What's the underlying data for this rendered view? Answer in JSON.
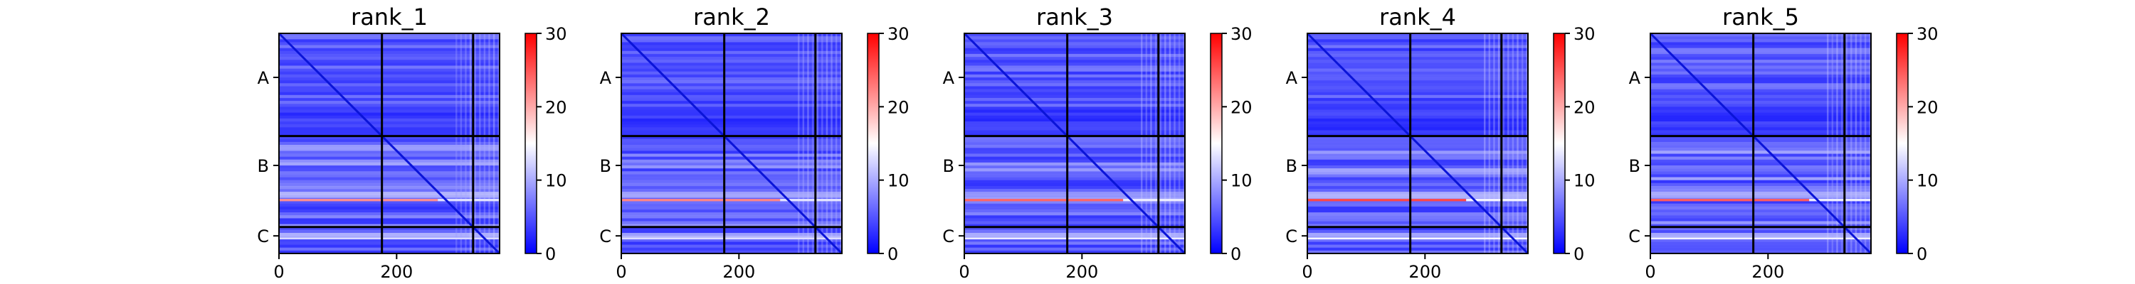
{
  "figure": {
    "colorscale": {
      "min": 0,
      "max": 30,
      "low_color": "#0000ff",
      "mid_color": "#ffffff",
      "high_color": "#ff0000",
      "ticks": [
        "0",
        "10",
        "20",
        "30"
      ]
    },
    "chain_labels": [
      "A",
      "B",
      "C"
    ],
    "x_ticks": [
      "0",
      "200"
    ]
  },
  "chart_data": [
    {
      "type": "heatmap",
      "title": "rank_1",
      "xlabel": "",
      "ylabel": "",
      "x_range": [
        0,
        375
      ],
      "y_range": [
        0,
        375
      ],
      "clim": [
        0,
        30
      ],
      "chain_breaks": [
        175,
        330
      ],
      "y_tick_labels": [
        "A",
        "B",
        "C"
      ],
      "x_tick_labels": [
        "0",
        "200"
      ],
      "colorbar_ticks": [
        0,
        10,
        20,
        30
      ],
      "hot_row_intensity": 0.8
    },
    {
      "type": "heatmap",
      "title": "rank_2",
      "xlabel": "",
      "ylabel": "",
      "x_range": [
        0,
        375
      ],
      "y_range": [
        0,
        375
      ],
      "clim": [
        0,
        30
      ],
      "chain_breaks": [
        175,
        330
      ],
      "y_tick_labels": [
        "A",
        "B",
        "C"
      ],
      "x_tick_labels": [
        "0",
        "200"
      ],
      "colorbar_ticks": [
        0,
        10,
        20,
        30
      ],
      "hot_row_intensity": 0.85
    },
    {
      "type": "heatmap",
      "title": "rank_3",
      "xlabel": "",
      "ylabel": "",
      "x_range": [
        0,
        375
      ],
      "y_range": [
        0,
        375
      ],
      "clim": [
        0,
        30
      ],
      "chain_breaks": [
        175,
        330
      ],
      "y_tick_labels": [
        "A",
        "B",
        "C"
      ],
      "x_tick_labels": [
        "0",
        "200"
      ],
      "colorbar_ticks": [
        0,
        10,
        20,
        30
      ],
      "hot_row_intensity": 1.0
    },
    {
      "type": "heatmap",
      "title": "rank_4",
      "xlabel": "",
      "ylabel": "",
      "x_range": [
        0,
        375
      ],
      "y_range": [
        0,
        375
      ],
      "clim": [
        0,
        30
      ],
      "chain_breaks": [
        175,
        330
      ],
      "y_tick_labels": [
        "A",
        "B",
        "C"
      ],
      "x_tick_labels": [
        "0",
        "200"
      ],
      "colorbar_ticks": [
        0,
        10,
        20,
        30
      ],
      "hot_row_intensity": 1.15
    },
    {
      "type": "heatmap",
      "title": "rank_5",
      "xlabel": "",
      "ylabel": "",
      "x_range": [
        0,
        375
      ],
      "y_range": [
        0,
        375
      ],
      "clim": [
        0,
        30
      ],
      "chain_breaks": [
        175,
        330
      ],
      "y_tick_labels": [
        "A",
        "B",
        "C"
      ],
      "x_tick_labels": [
        "0",
        "200"
      ],
      "colorbar_ticks": [
        0,
        10,
        20,
        30
      ],
      "hot_row_intensity": 1.05
    }
  ]
}
